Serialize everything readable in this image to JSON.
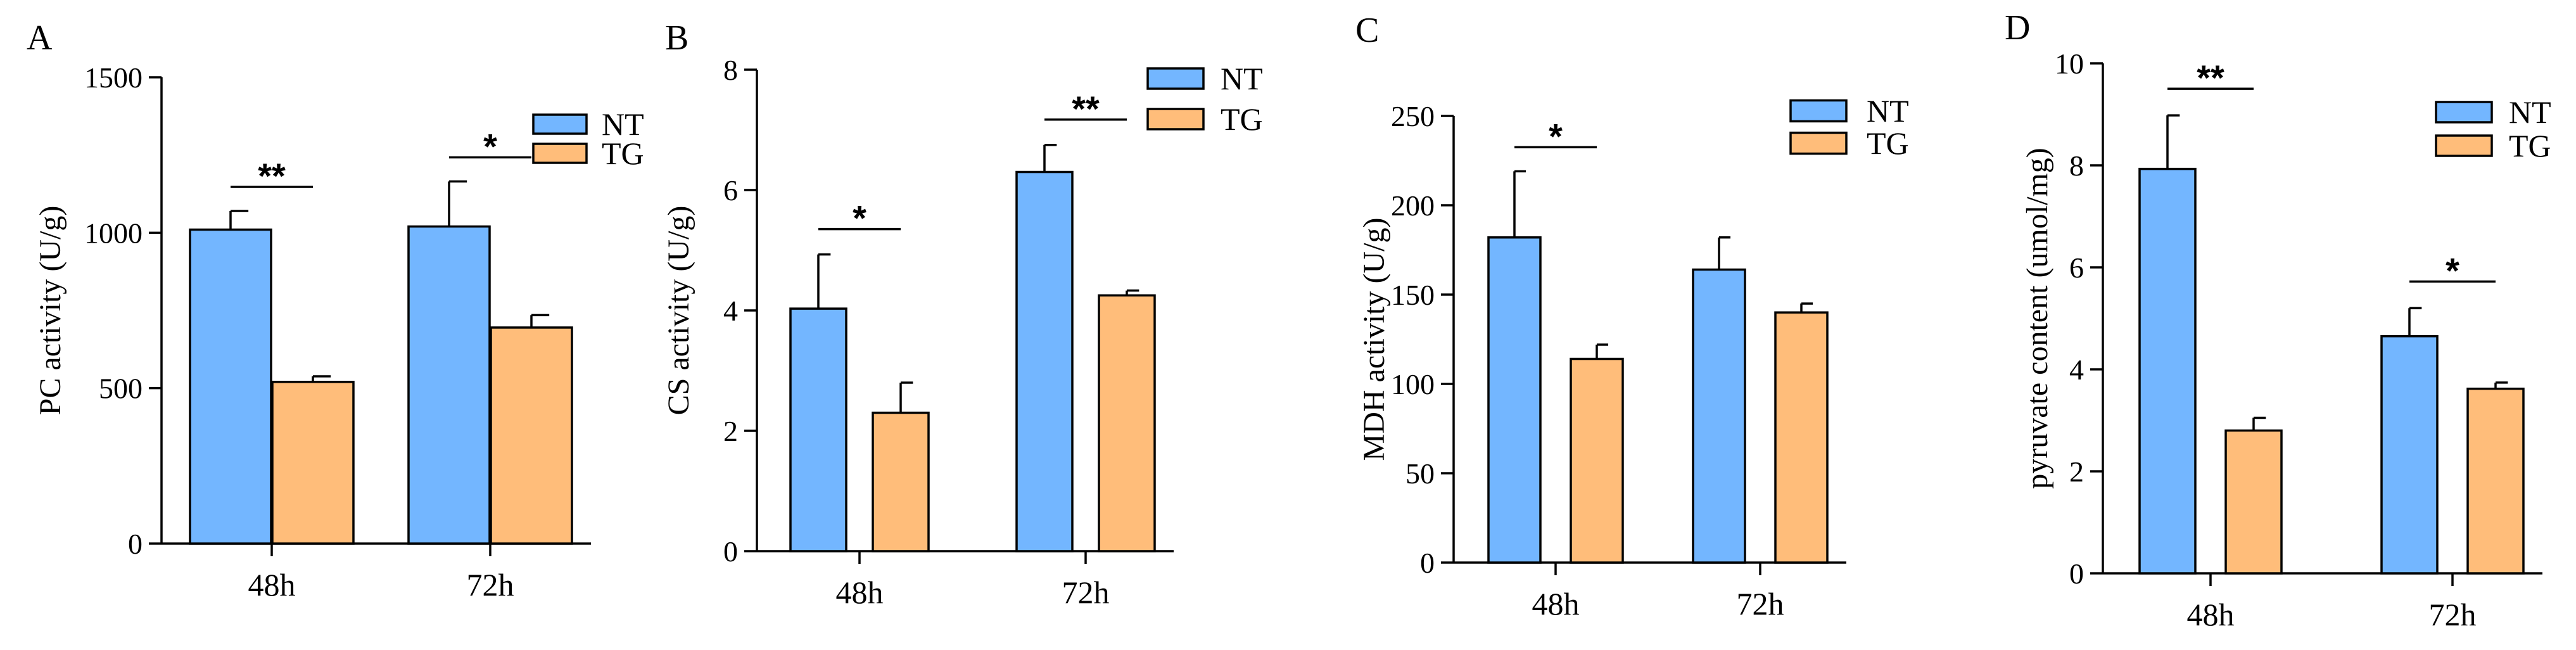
{
  "colors": {
    "NT": "#73b6ff",
    "TG": "#ffbd7a"
  },
  "chart_data": [
    {
      "type": "bar",
      "panel": "A",
      "ylabel": "PC activity (U/g)",
      "categories": [
        "48h",
        "72h"
      ],
      "series": [
        {
          "name": "NT",
          "values": [
            1010,
            1020
          ],
          "errors": [
            60,
            145
          ]
        },
        {
          "name": "TG",
          "values": [
            520,
            695
          ],
          "errors": [
            18,
            40
          ]
        }
      ],
      "ylim": [
        0,
        1500
      ],
      "yticks": [
        0,
        500,
        1000,
        1500
      ],
      "significance": [
        "**",
        "*"
      ],
      "legend": [
        "NT",
        "TG"
      ],
      "legend_position": "top-right"
    },
    {
      "type": "bar",
      "panel": "B",
      "ylabel": "CS activity (U/g)",
      "categories": [
        "48h",
        "72h"
      ],
      "series": [
        {
          "name": "NT",
          "values": [
            4.03,
            6.3
          ],
          "errors": [
            0.9,
            0.45
          ]
        },
        {
          "name": "TG",
          "values": [
            2.3,
            4.25
          ],
          "errors": [
            0.5,
            0.08
          ]
        }
      ],
      "ylim": [
        0,
        8
      ],
      "yticks": [
        0,
        2,
        4,
        6,
        8
      ],
      "significance": [
        "*",
        "**"
      ],
      "legend": [
        "NT",
        "TG"
      ],
      "legend_position": "top-right"
    },
    {
      "type": "bar",
      "panel": "C",
      "ylabel": "MDH activity (U/g)",
      "categories": [
        "48h",
        "72h"
      ],
      "series": [
        {
          "name": "NT",
          "values": [
            182,
            164
          ],
          "errors": [
            37,
            18
          ]
        },
        {
          "name": "TG",
          "values": [
            114,
            140
          ],
          "errors": [
            8,
            5
          ]
        }
      ],
      "ylim": [
        0,
        250
      ],
      "yticks": [
        0,
        50,
        100,
        150,
        200,
        250
      ],
      "significance": [
        "*",
        ""
      ],
      "legend": [
        "NT",
        "TG"
      ],
      "legend_position": "top-right"
    },
    {
      "type": "bar",
      "panel": "D",
      "ylabel": "pyruvate content (umol/mg)",
      "categories": [
        "48h",
        "72h"
      ],
      "series": [
        {
          "name": "NT",
          "values": [
            7.93,
            4.65
          ],
          "errors": [
            1.05,
            0.55
          ]
        },
        {
          "name": "TG",
          "values": [
            2.8,
            3.62
          ],
          "errors": [
            0.25,
            0.12
          ]
        }
      ],
      "ylim": [
        0,
        10
      ],
      "yticks": [
        0,
        2,
        4,
        6,
        8,
        10
      ],
      "significance": [
        "**",
        "*"
      ],
      "legend": [
        "NT",
        "TG"
      ],
      "legend_position": "top-right"
    }
  ]
}
